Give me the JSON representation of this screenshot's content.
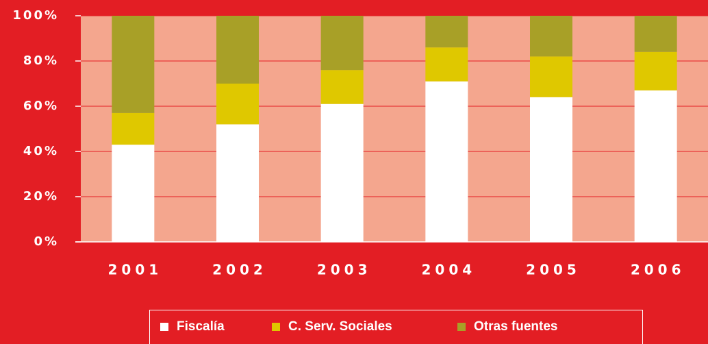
{
  "chart_data": {
    "type": "stacked_bar",
    "categories": [
      "2001",
      "2002",
      "2003",
      "2004",
      "2005",
      "2006"
    ],
    "series": [
      {
        "name": "Fiscalía",
        "color": "#ffffff",
        "values": [
          43,
          52,
          61,
          71,
          64,
          67
        ]
      },
      {
        "name": "C. Serv. Sociales",
        "color": "#dfc800",
        "values": [
          14,
          18,
          15,
          15,
          18,
          17
        ]
      },
      {
        "name": "Otras fuentes",
        "color": "#a8a027",
        "values": [
          43,
          30,
          24,
          14,
          18,
          16
        ]
      }
    ],
    "ylim": [
      0,
      100
    ],
    "yticks": [
      {
        "value": 0,
        "label": "0%"
      },
      {
        "value": 20,
        "label": "20%"
      },
      {
        "value": 40,
        "label": "40%"
      },
      {
        "value": 60,
        "label": "60%"
      },
      {
        "value": 80,
        "label": "80%"
      },
      {
        "value": 100,
        "label": "100%"
      }
    ],
    "grid": true,
    "legend": "bottom"
  }
}
